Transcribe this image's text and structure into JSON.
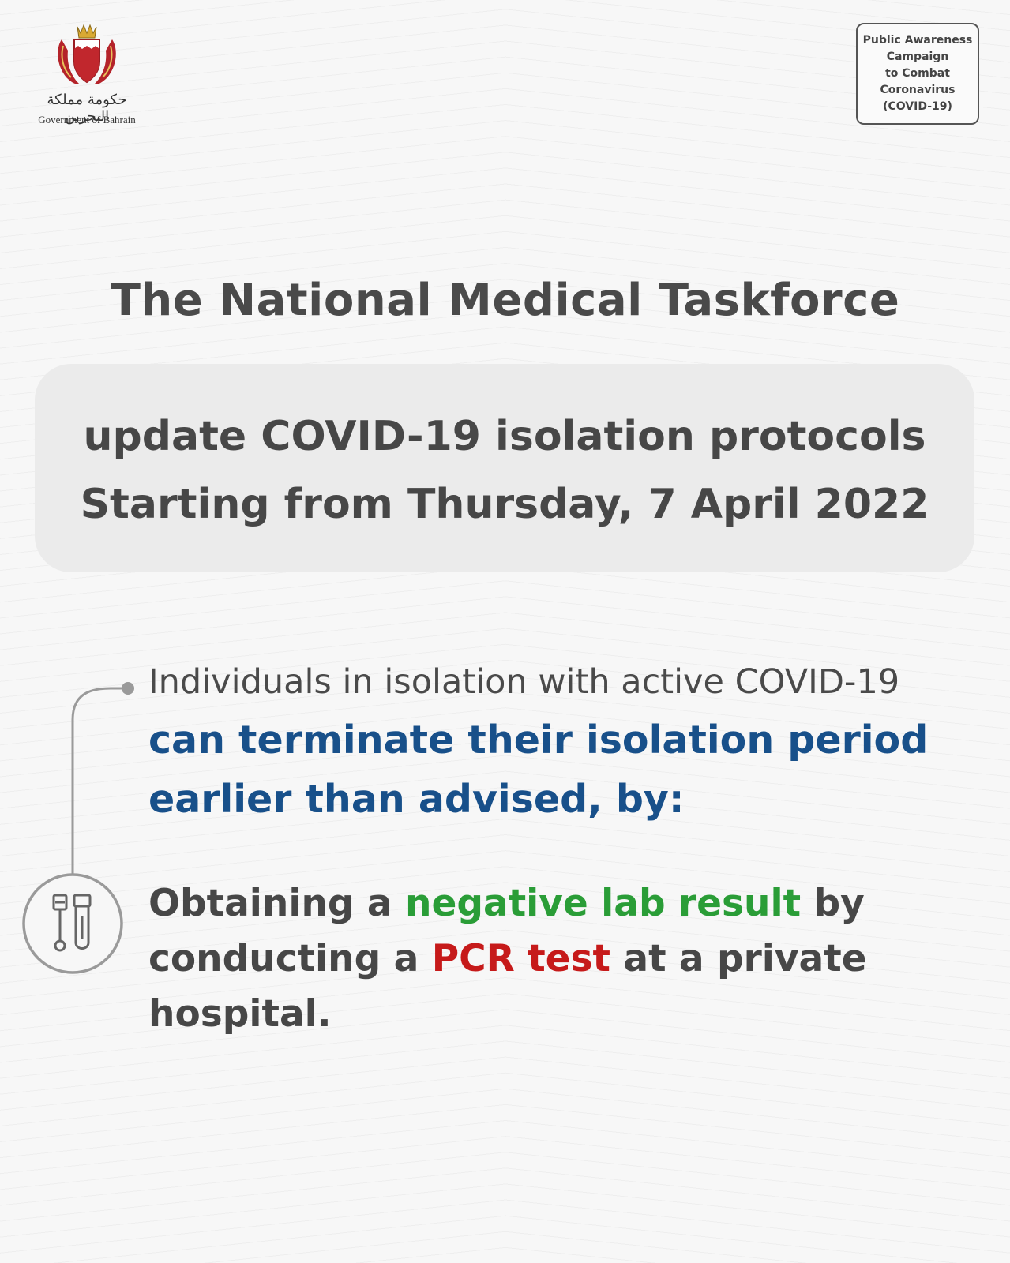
{
  "header": {
    "logo_arabic": "حكومة مملكة البحرين",
    "logo_caption": "Government of Bahrain",
    "campaign_lines": [
      "Public Awareness",
      "Campaign",
      "to Combat",
      "Coronavirus",
      "(COVID-19)"
    ]
  },
  "title": "The National Medical Taskforce",
  "update": {
    "line1": "update COVID-19 isolation protocols",
    "line2": "Starting from Thursday, 7 April 2022"
  },
  "bullet": {
    "intro": "Individuals in isolation with active COVID-19",
    "emphasis_line1": "can terminate their isolation period",
    "emphasis_line2": "earlier than advised, by:"
  },
  "action": {
    "part1": "Obtaining a ",
    "highlight1": "negative lab result",
    "part2": " by",
    "part3": "conducting a ",
    "highlight2": "PCR test",
    "part4": " at a private hospital."
  },
  "colors": {
    "background": "#f7f7f7",
    "heading": "#4a4a4a",
    "emphasis_blue": "#18508a",
    "highlight_green": "#2a9d37",
    "highlight_red": "#c61a1a",
    "panel": "#ebebeb"
  },
  "icons": {
    "logo": "bahrain-coat-of-arms-icon",
    "bullet": "test-tubes-icon"
  }
}
